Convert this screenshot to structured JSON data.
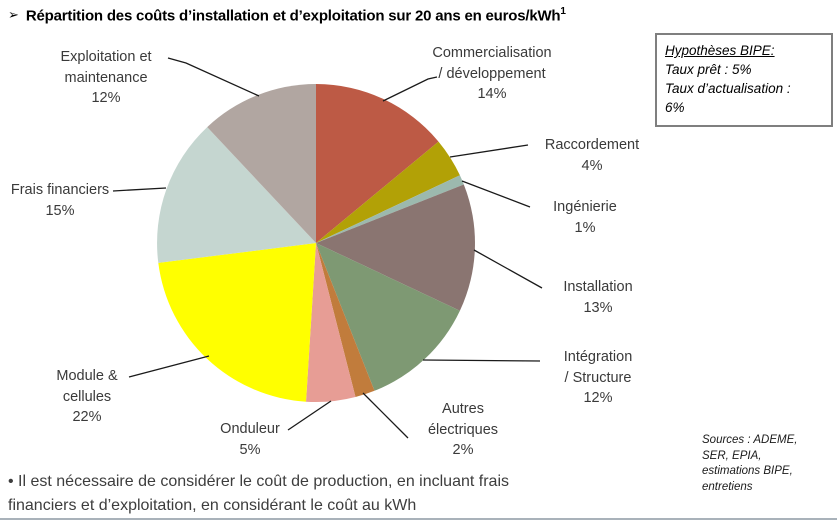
{
  "page": {
    "title_bullet": "➢",
    "title": "Répartition des coûts d’installation et d’exploitation sur 20 ans en euros/kWh",
    "title_superscript": "1",
    "footnote_lines": [
      "• Il est nécessaire de considérer le coût de production, en incluant frais",
      "financiers et d’exploitation, en considérant le coût au kWh"
    ]
  },
  "hypotheses_box": {
    "title": "Hypothèses BIPE:",
    "lines": [
      "Taux prêt : 5%",
      "Taux d’actualisation :",
      "6%"
    ]
  },
  "sources": {
    "lines": [
      "Sources : ADEME,",
      "SER, EPIA,",
      "estimations BIPE,",
      "entretiens"
    ]
  },
  "chart_data": {
    "type": "pie",
    "title": "Répartition des coûts d’installation et d’exploitation sur 20 ans en euros/kWh",
    "unit": "%",
    "start_angle_deg": 0,
    "direction": "clockwise",
    "legend": "none (callout labels with leader lines)",
    "slices": [
      {
        "key": "commercialisation",
        "name": "Commercialisation / développement",
        "label_lines": [
          "Commercialisation",
          "/ développement"
        ],
        "value": 14,
        "pct_label": "14%",
        "color": "#BD5A45"
      },
      {
        "key": "raccordement",
        "name": "Raccordement",
        "label_lines": [
          "Raccordement"
        ],
        "value": 4,
        "pct_label": "4%",
        "color": "#B2A106"
      },
      {
        "key": "ingenierie",
        "name": "Ingénierie",
        "label_lines": [
          "Ingénierie"
        ],
        "value": 1,
        "pct_label": "1%",
        "color": "#9CB9AE"
      },
      {
        "key": "installation",
        "name": "Installation",
        "label_lines": [
          "Installation"
        ],
        "value": 13,
        "pct_label": "13%",
        "color": "#8A7571"
      },
      {
        "key": "integration",
        "name": "Intégration / Structure",
        "label_lines": [
          "Intégration",
          "/ Structure"
        ],
        "value": 12,
        "pct_label": "12%",
        "color": "#7E9973"
      },
      {
        "key": "autres-electriques",
        "name": "Autres électriques",
        "label_lines": [
          "Autres",
          "électriques"
        ],
        "value": 2,
        "pct_label": "2%",
        "color": "#C17C3C"
      },
      {
        "key": "onduleur",
        "name": "Onduleur",
        "label_lines": [
          "Onduleur"
        ],
        "value": 5,
        "pct_label": "5%",
        "color": "#E79D95"
      },
      {
        "key": "module-cellules",
        "name": "Module & cellules",
        "label_lines": [
          "Module &",
          "cellules"
        ],
        "value": 22,
        "pct_label": "22%",
        "color": "#FFFF00"
      },
      {
        "key": "frais-financiers",
        "name": "Frais financiers",
        "label_lines": [
          "Frais financiers"
        ],
        "value": 15,
        "pct_label": "15%",
        "color": "#C5D6D0"
      },
      {
        "key": "exploitation",
        "name": "Exploitation et maintenance",
        "label_lines": [
          "Exploitation et",
          "maintenance"
        ],
        "value": 12,
        "pct_label": "12%",
        "color": "#B1A6A1"
      }
    ]
  }
}
